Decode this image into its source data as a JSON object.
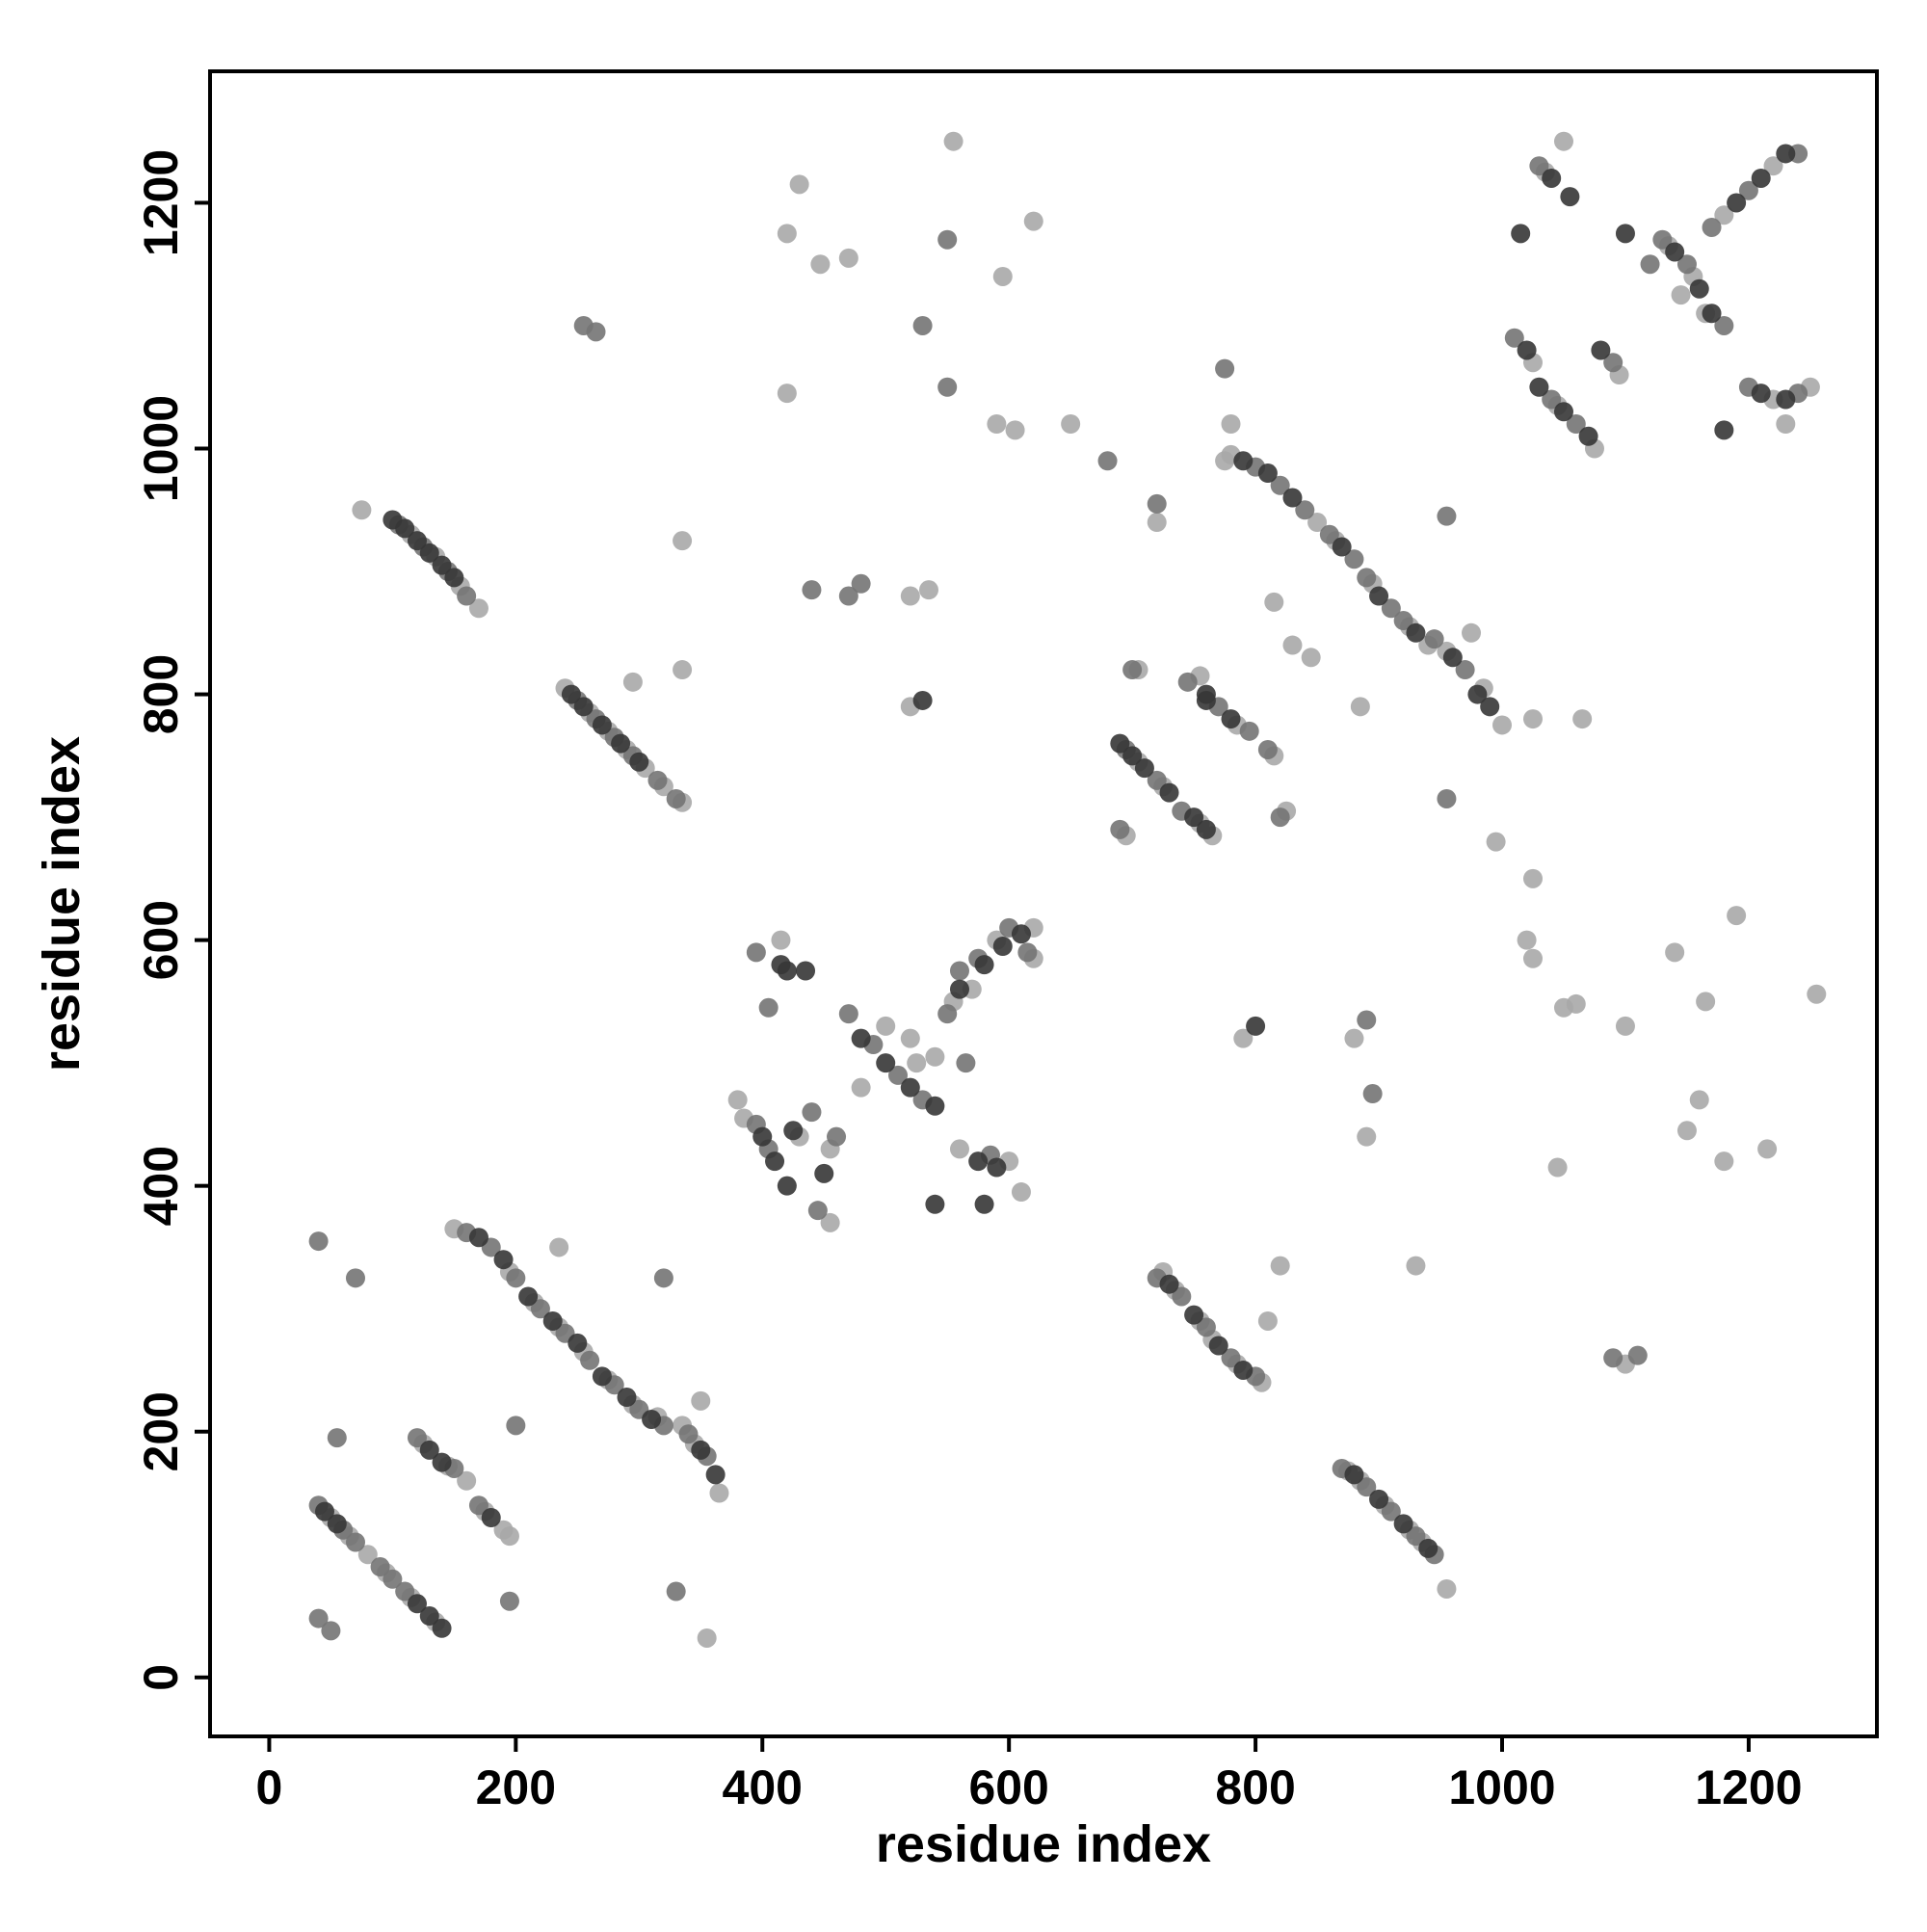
{
  "chart_data": {
    "type": "scatter",
    "xlabel": "residue index",
    "ylabel": "residue index",
    "xlim": [
      -48,
      1304
    ],
    "ylim": [
      -48,
      1307
    ],
    "xticks": [
      0,
      200,
      400,
      600,
      800,
      1000,
      1200
    ],
    "yticks": [
      0,
      200,
      400,
      600,
      800,
      1000,
      1200
    ],
    "grid": false,
    "series": [
      {
        "color": "#a9a9a9",
        "x": [
          75,
          115,
          135,
          155,
          170,
          240,
          260,
          275,
          290,
          305,
          320,
          335,
          295,
          335,
          150,
          195,
          215,
          235,
          255,
          275,
          295,
          315,
          335,
          345,
          365,
          235,
          350,
          50,
          65,
          80,
          95,
          115,
          135,
          355,
          125,
          145,
          160,
          175,
          190,
          195,
          385,
          430,
          455,
          455,
          480,
          500,
          520,
          525,
          540,
          555,
          570,
          590,
          620,
          620,
          600,
          610,
          380,
          415,
          560,
          430,
          420,
          447,
          470,
          555,
          595,
          620,
          420,
          590,
          605,
          650,
          520,
          535,
          520,
          335,
          705,
          725,
          755,
          765,
          755,
          785,
          815,
          705,
          825,
          695,
          780,
          850,
          865,
          895,
          925,
          940,
          955,
          975,
          985,
          1000,
          775,
          725,
          735,
          755,
          765,
          785,
          805,
          875,
          885,
          905,
          925,
          935,
          955,
          1025,
          1045,
          1075,
          1135,
          1155,
          1145,
          1165,
          1180,
          1220,
          1035,
          1050,
          1220,
          1250,
          1230,
          1095,
          1025,
          1020,
          1025,
          1050,
          1060,
          1140,
          1190,
          1255,
          1165,
          1100,
          1160,
          1150,
          1180,
          1215,
          1045,
          1100,
          890,
          880,
          790,
          930,
          820,
          810,
          885,
          815,
          830,
          845,
          1025,
          1065,
          995,
          780,
          720
        ],
        "values": [
          950,
          930,
          912,
          888,
          870,
          805,
          785,
          770,
          755,
          740,
          725,
          712,
          810,
          820,
          365,
          330,
          305,
          285,
          265,
          242,
          222,
          212,
          205,
          190,
          150,
          350,
          225,
          130,
          115,
          100,
          85,
          65,
          45,
          32,
          190,
          172,
          160,
          135,
          120,
          115,
          455,
          440,
          430,
          370,
          480,
          530,
          520,
          500,
          505,
          550,
          560,
          600,
          610,
          585,
          420,
          395,
          470,
          600,
          430,
          1215,
          1175,
          1150,
          1155,
          1250,
          1140,
          1185,
          1045,
          1020,
          1015,
          1020,
          880,
          885,
          790,
          925,
          745,
          725,
          695,
          685,
          815,
          775,
          750,
          820,
          705,
          685,
          995,
          940,
          925,
          890,
          855,
          840,
          835,
          850,
          805,
          775,
          990,
          330,
          315,
          290,
          275,
          255,
          240,
          168,
          160,
          140,
          120,
          110,
          72,
          1070,
          1035,
          1000,
          1165,
          1140,
          1125,
          1110,
          1190,
          1230,
          1225,
          1250,
          1040,
          1050,
          1020,
          1060,
          650,
          600,
          585,
          545,
          548,
          590,
          620,
          556,
          550,
          530,
          470,
          445,
          420,
          430,
          415,
          255,
          440,
          520,
          520,
          335,
          335,
          290,
          790,
          875,
          840,
          830,
          780,
          780,
          680,
          1020,
          940
        ]
      },
      {
        "color": "#747474",
        "x": [
          105,
          125,
          145,
          160,
          250,
          265,
          280,
          295,
          315,
          330,
          160,
          180,
          200,
          220,
          240,
          260,
          280,
          300,
          320,
          340,
          355,
          40,
          60,
          70,
          90,
          100,
          110,
          120,
          150,
          170,
          40,
          70,
          55,
          40,
          50,
          195,
          200,
          320,
          330,
          255,
          265,
          405,
          395,
          440,
          460,
          445,
          470,
          490,
          510,
          530,
          550,
          560,
          575,
          600,
          615,
          565,
          585,
          395,
          405,
          550,
          530,
          550,
          470,
          480,
          440,
          695,
          720,
          740,
          745,
          770,
          795,
          810,
          700,
          690,
          820,
          800,
          820,
          840,
          860,
          880,
          890,
          910,
          920,
          945,
          970,
          720,
          740,
          760,
          780,
          800,
          870,
          890,
          910,
          930,
          945,
          1010,
          1040,
          1060,
          1130,
          1150,
          1180,
          1170,
          1200,
          1240,
          1030,
          1200,
          1240,
          1090,
          1120,
          890,
          895,
          1090,
          1110,
          955,
          680,
          775,
          720,
          955
        ],
        "values": [
          938,
          920,
          900,
          880,
          795,
          780,
          765,
          750,
          730,
          715,
          362,
          350,
          325,
          300,
          280,
          258,
          238,
          218,
          205,
          198,
          180,
          140,
          120,
          110,
          90,
          80,
          70,
          195,
          170,
          140,
          355,
          325,
          195,
          48,
          38,
          62,
          205,
          325,
          70,
          1100,
          1095,
          430,
          450,
          460,
          440,
          380,
          540,
          515,
          490,
          470,
          540,
          575,
          585,
          610,
          590,
          500,
          425,
          590,
          545,
          1170,
          1100,
          1050,
          880,
          890,
          885,
          755,
          730,
          705,
          810,
          790,
          770,
          755,
          820,
          690,
          700,
          985,
          970,
          950,
          930,
          910,
          895,
          870,
          860,
          845,
          820,
          325,
          310,
          285,
          260,
          245,
          170,
          155,
          135,
          115,
          100,
          1090,
          1040,
          1020,
          1170,
          1150,
          1100,
          1180,
          1210,
          1240,
          1230,
          1050,
          1045,
          1070,
          1150,
          535,
          475,
          260,
          262,
          945,
          990,
          1065,
          955,
          715
        ]
      },
      {
        "color": "#363636",
        "x": [
          100,
          110,
          120,
          130,
          140,
          150,
          245,
          255,
          270,
          285,
          300,
          170,
          190,
          210,
          230,
          250,
          270,
          290,
          310,
          350,
          362,
          45,
          55,
          120,
          130,
          140,
          130,
          140,
          180,
          400,
          410,
          420,
          415,
          420,
          435,
          480,
          500,
          520,
          540,
          560,
          580,
          595,
          610,
          575,
          590,
          540,
          580,
          450,
          425,
          690,
          700,
          710,
          730,
          750,
          760,
          760,
          780,
          790,
          810,
          830,
          870,
          900,
          930,
          960,
          980,
          990,
          730,
          750,
          770,
          790,
          880,
          900,
          920,
          940,
          1020,
          1030,
          1050,
          1070,
          1140,
          1160,
          1170,
          1190,
          1210,
          1230,
          1040,
          1055,
          1210,
          1230,
          1080,
          1100,
          800,
          760,
          530,
          1180,
          1015
        ],
        "values": [
          942,
          935,
          925,
          915,
          905,
          895,
          800,
          790,
          775,
          760,
          745,
          358,
          340,
          310,
          290,
          272,
          245,
          228,
          210,
          185,
          165,
          135,
          125,
          60,
          50,
          40,
          185,
          175,
          130,
          440,
          420,
          400,
          580,
          575,
          575,
          520,
          500,
          480,
          465,
          560,
          580,
          595,
          605,
          420,
          415,
          385,
          385,
          410,
          445,
          760,
          750,
          740,
          720,
          700,
          690,
          800,
          780,
          990,
          980,
          960,
          920,
          880,
          850,
          830,
          800,
          790,
          320,
          295,
          270,
          250,
          165,
          145,
          125,
          105,
          1080,
          1050,
          1030,
          1010,
          1160,
          1130,
          1110,
          1200,
          1220,
          1240,
          1220,
          1205,
          1045,
          1040,
          1080,
          1175,
          530,
          795,
          795,
          1015,
          1175
        ]
      }
    ]
  }
}
